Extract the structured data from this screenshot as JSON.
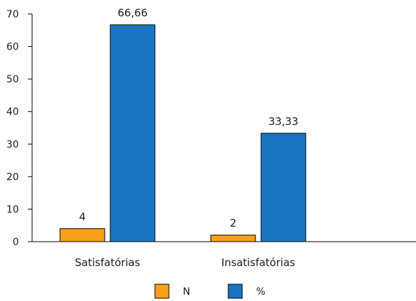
{
  "chart_data": {
    "type": "bar",
    "categories": [
      "Satisfatórias",
      "Insatisfatórias"
    ],
    "series": [
      {
        "name": "N",
        "values": [
          4,
          2
        ],
        "labels": [
          "4",
          "2"
        ],
        "color": "#f7a11a"
      },
      {
        "name": "%",
        "values": [
          66.66,
          33.33
        ],
        "labels": [
          "66,66",
          "33,33"
        ],
        "color": "#1a75c1"
      }
    ],
    "yticks": [
      "0",
      "10",
      "20",
      "30",
      "40",
      "50",
      "60",
      "70"
    ],
    "ylim": [
      0,
      70
    ],
    "grid": false,
    "legend": "bottom-center",
    "title": "",
    "xlabel": "",
    "ylabel": ""
  }
}
